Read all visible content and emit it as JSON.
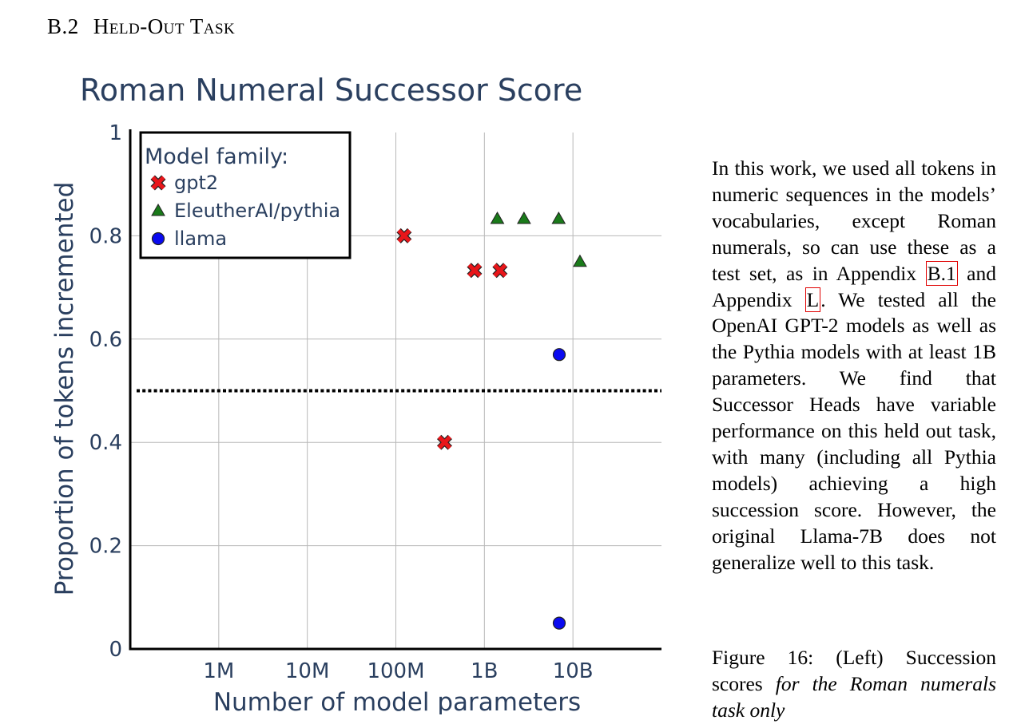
{
  "section": {
    "number": "B.2",
    "title": "Held-Out Task"
  },
  "chart_data": {
    "type": "scatter",
    "title": "Roman Numeral Successor Score",
    "xlabel": "Number of model parameters",
    "ylabel": "Proportion of tokens incremented",
    "x_scale": "log",
    "xlim": [
      100000,
      100000000000
    ],
    "ylim": [
      0,
      1
    ],
    "x_ticks": [
      {
        "value": 1000000,
        "label": "1M"
      },
      {
        "value": 10000000,
        "label": "10M"
      },
      {
        "value": 100000000,
        "label": "100M"
      },
      {
        "value": 1000000000,
        "label": "1B"
      },
      {
        "value": 10000000000,
        "label": "10B"
      }
    ],
    "y_ticks": [
      {
        "value": 0,
        "label": "0"
      },
      {
        "value": 0.2,
        "label": "0.2"
      },
      {
        "value": 0.4,
        "label": "0.4"
      },
      {
        "value": 0.6,
        "label": "0.6"
      },
      {
        "value": 0.8,
        "label": "0.8"
      },
      {
        "value": 1,
        "label": "1"
      }
    ],
    "grid": true,
    "reference_line": {
      "y": 0.5,
      "style": "dotted"
    },
    "legend": {
      "title": "Model family:",
      "position": "top-left"
    },
    "series": [
      {
        "name": "gpt2",
        "marker": "x",
        "color": "#e8161a",
        "points": [
          {
            "x": 124000000,
            "y": 0.8
          },
          {
            "x": 355000000,
            "y": 0.4
          },
          {
            "x": 774000000,
            "y": 0.733
          },
          {
            "x": 1500000000,
            "y": 0.733
          }
        ]
      },
      {
        "name": "EleutherAI/pythia",
        "marker": "triangle",
        "color": "#1a7a1a",
        "points": [
          {
            "x": 1400000000,
            "y": 0.833
          },
          {
            "x": 2800000000,
            "y": 0.833
          },
          {
            "x": 6900000000,
            "y": 0.833
          },
          {
            "x": 12000000000,
            "y": 0.75
          }
        ]
      },
      {
        "name": "llama",
        "marker": "circle",
        "color": "#0a0af0",
        "points": [
          {
            "x": 7000000000,
            "y": 0.57
          },
          {
            "x": 7000000000,
            "y": 0.05
          }
        ]
      }
    ]
  },
  "paragraph": [
    {
      "t": "In this work, we used all tokens in numeric sequences in the models’ vocabularies, except Roman numerals, so can use these as a test set, as in Appendix "
    },
    {
      "t": "B.1",
      "ref": true
    },
    {
      "t": " and Appendix "
    },
    {
      "t": "L",
      "ref": true
    },
    {
      "t": ". We tested all the OpenAI GPT-2 models as well as the Pythia models with at least 1B parameters. We find that Successor Heads have variable performance on this held out task, with many (including all Pythia models) achieving a high succession score. However, the original Llama-7B does not generalize well to this task."
    }
  ],
  "caption": {
    "label": "Figure 16:",
    "text": " (Left) Succession scores ",
    "emphasis": "for the Roman numerals task only"
  }
}
